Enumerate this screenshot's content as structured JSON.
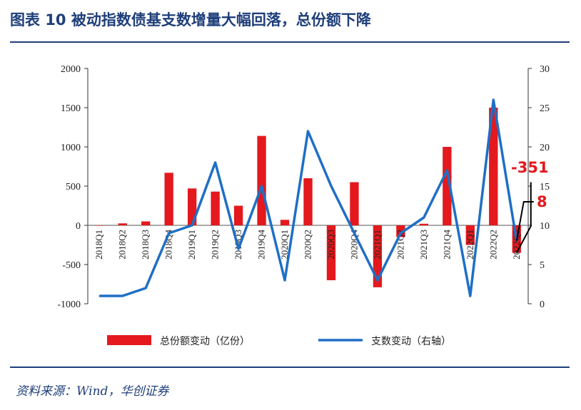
{
  "page": {
    "title": "图表 10  被动指数债基支数增量大幅回落，总份额下降",
    "source": "资料来源：Wind，华创证券"
  },
  "chart_data": {
    "type": "bar+line",
    "categories": [
      "2018Q1",
      "2018Q2",
      "2018Q3",
      "2018Q4",
      "2019Q1",
      "2019Q2",
      "2019Q3",
      "2019Q4",
      "2020Q1",
      "2020Q2",
      "2020Q3",
      "2020Q4",
      "2021Q1",
      "2021Q2",
      "2021Q3",
      "2021Q4",
      "2022Q1",
      "2022Q2",
      "2022Q3"
    ],
    "series": [
      {
        "name": "总份额变动（亿份）",
        "kind": "bar",
        "axis": "left",
        "color": "#e3191e",
        "values": [
          0,
          25,
          50,
          670,
          470,
          430,
          250,
          1140,
          70,
          600,
          -700,
          550,
          -790,
          -150,
          20,
          1000,
          -250,
          1500,
          -351
        ]
      },
      {
        "name": "支数变动（右轴）",
        "kind": "line",
        "axis": "right",
        "color": "#1f6fc5",
        "values": [
          1,
          1,
          2,
          9,
          10,
          18,
          7,
          15,
          3,
          22,
          15,
          9,
          3,
          9,
          11,
          17,
          1,
          26,
          8
        ]
      }
    ],
    "ylim_left": [
      -1000,
      2000
    ],
    "yticks_left": [
      -1000,
      -500,
      0,
      500,
      1000,
      1500,
      2000
    ],
    "ylim_right": [
      0,
      30
    ],
    "yticks_right": [
      0,
      5,
      10,
      15,
      20,
      25,
      30
    ],
    "annotations": [
      {
        "text": "-351",
        "color": "#e3191e",
        "series": 0,
        "index": 18
      },
      {
        "text": "8",
        "color": "#e3191e",
        "series": 1,
        "index": 18
      }
    ],
    "legend_position": "bottom"
  }
}
